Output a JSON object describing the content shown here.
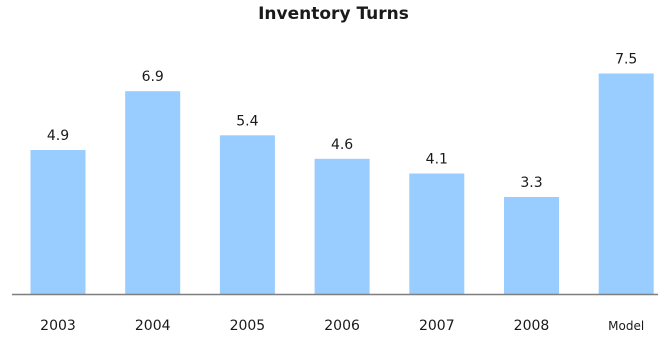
{
  "chart_data": {
    "type": "bar",
    "title": "Inventory Turns",
    "categories": [
      "2003",
      "2004",
      "2005",
      "2006",
      "2007",
      "2008",
      "Model"
    ],
    "values": [
      4.9,
      6.9,
      5.4,
      4.6,
      4.1,
      3.3,
      7.5
    ],
    "value_labels": [
      "4.9",
      "6.9",
      "5.4",
      "4.6",
      "4.1",
      "3.3",
      "7.5"
    ],
    "xlabel": "",
    "ylabel": "",
    "ylim": [
      0,
      8.3
    ],
    "grid": false,
    "legend": "none",
    "bar_color": "#99ccff",
    "axis_color": "#7f7f7f"
  }
}
